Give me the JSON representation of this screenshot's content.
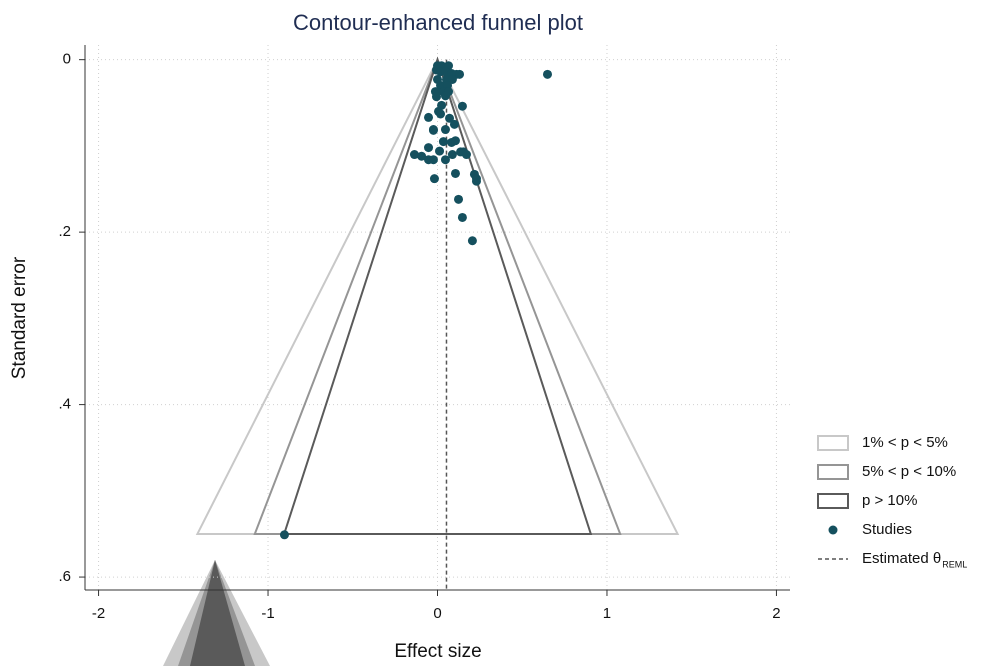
{
  "chart_data": {
    "type": "funnel",
    "title": "Contour-enhanced funnel plot",
    "x_label": "Effect size",
    "y_label": "Standard error",
    "xlim": [
      -2.08,
      2.08
    ],
    "ylim": [
      -0.017,
      0.615
    ],
    "y_reversed": true,
    "xticks": [
      -2,
      -1,
      0,
      1,
      2
    ],
    "yticks": [
      0,
      {
        "value": 0.2,
        "label": ".2"
      },
      {
        "value": 0.4,
        "label": ".4"
      },
      {
        "value": 0.6,
        "label": ".6"
      }
    ],
    "grid": true,
    "se_max": 0.55,
    "contours": [
      {
        "name": "1% < p < 5%",
        "z": 2.576,
        "color": "#c8c8c8"
      },
      {
        "name": "5% < p < 10%",
        "z": 1.96,
        "color": "#959595"
      },
      {
        "name": "p > 10%",
        "z": 1.645,
        "color": "#5a5a5a"
      }
    ],
    "series": [
      {
        "name": "Studies",
        "color": "#15505e",
        "x": [
          0,
          0.024,
          0.065,
          -0.006,
          0.018,
          0.047,
          0.083,
          0.112,
          0.13,
          0.649,
          0,
          0.053,
          0.088,
          0.018,
          0.059,
          -0.012,
          0.035,
          0.065,
          -0.006,
          0.047,
          0.024,
          0.147,
          -0.053,
          0.071,
          0.006,
          0.018,
          0.1,
          -0.024,
          0.047,
          0.035,
          0.083,
          -0.024,
          0.106,
          -0.053,
          -0.024,
          0.047,
          0.088,
          0.136,
          -0.053,
          0.153,
          -0.136,
          -0.094,
          0.171,
          0.012,
          0.106,
          -0.018,
          0.218,
          0.23,
          0.23,
          0.124,
          0.147,
          0.206,
          -0.903
        ],
        "y": [
          0.007,
          0.007,
          0.007,
          0.012,
          0.014,
          0.014,
          0.016,
          0.017,
          0.017,
          0.017,
          0.023,
          0.023,
          0.023,
          0.03,
          0.03,
          0.037,
          0.037,
          0.037,
          0.043,
          0.042,
          0.053,
          0.054,
          0.067,
          0.068,
          0.06,
          0.063,
          0.075,
          0.081,
          0.081,
          0.095,
          0.096,
          0.082,
          0.094,
          0.116,
          0.116,
          0.116,
          0.11,
          0.107,
          0.102,
          0.107,
          0.11,
          0.112,
          0.11,
          0.106,
          0.132,
          0.138,
          0.133,
          0.141,
          0.138,
          0.162,
          0.183,
          0.21,
          0.551
        ]
      }
    ],
    "theta": {
      "name": "Estimated θ",
      "name_subscript": "REML",
      "value": 0.053,
      "color": "#555555"
    },
    "legend": "right"
  }
}
